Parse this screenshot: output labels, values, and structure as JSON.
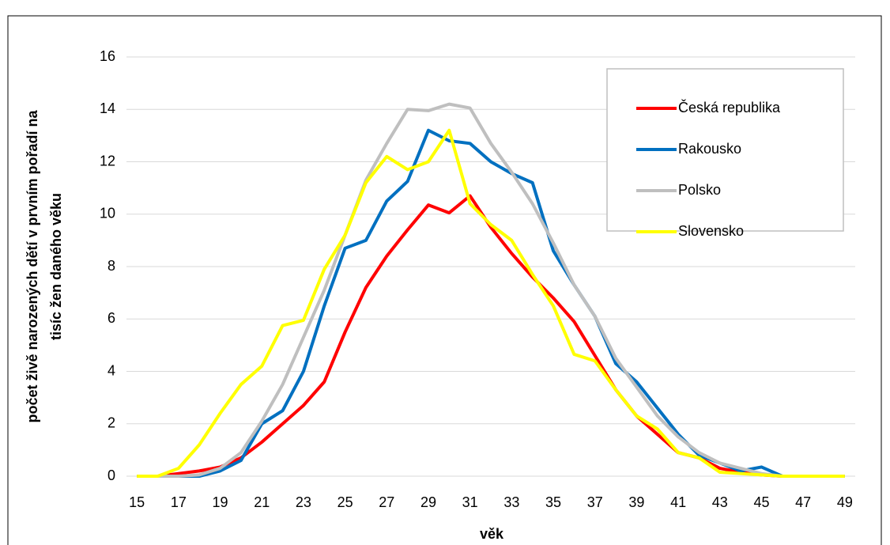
{
  "chart_data": {
    "type": "line",
    "xlabel": "věk",
    "ylabel": [
      "počet živě narozených dětí v prvním pořadí na",
      "tisíc žen daného věku"
    ],
    "x": [
      15,
      16,
      17,
      18,
      19,
      20,
      21,
      22,
      23,
      24,
      25,
      26,
      27,
      28,
      29,
      30,
      31,
      32,
      33,
      34,
      35,
      36,
      37,
      38,
      39,
      40,
      41,
      42,
      43,
      44,
      45,
      46,
      47,
      48,
      49
    ],
    "xlim": [
      14.5,
      49.5
    ],
    "xticks": [
      15,
      17,
      19,
      21,
      23,
      25,
      27,
      29,
      31,
      33,
      35,
      37,
      39,
      41,
      43,
      45,
      47,
      49
    ],
    "ylim": [
      0,
      16
    ],
    "yticks": [
      0,
      2,
      4,
      6,
      8,
      10,
      12,
      14,
      16
    ],
    "grid": true,
    "legend": "upper right",
    "series": [
      {
        "name": "Česká republika",
        "color": "#ff0000",
        "values": [
          0,
          0,
          0.1,
          0.2,
          0.35,
          0.7,
          1.3,
          2.0,
          2.7,
          3.6,
          5.5,
          7.2,
          8.4,
          9.4,
          10.35,
          10.05,
          10.7,
          9.5,
          8.5,
          7.6,
          6.8,
          5.9,
          4.6,
          3.3,
          2.3,
          1.6,
          0.9,
          0.7,
          0.3,
          0.15,
          0.05,
          0,
          0,
          0,
          0
        ]
      },
      {
        "name": "Rakousko",
        "color": "#0070c0",
        "values": [
          0,
          0,
          0,
          0,
          0.2,
          0.6,
          2.0,
          2.5,
          4.0,
          6.5,
          8.7,
          9.0,
          10.5,
          11.25,
          13.2,
          12.8,
          12.7,
          12.0,
          11.55,
          11.2,
          8.6,
          7.3,
          6.1,
          4.3,
          3.6,
          2.6,
          1.6,
          0.8,
          0.5,
          0.2,
          0.35,
          0,
          0,
          0,
          0
        ]
      },
      {
        "name": "Polsko",
        "color": "#bfbfbf",
        "values": [
          0,
          0,
          0,
          0.05,
          0.3,
          0.9,
          2.1,
          3.5,
          5.3,
          7.1,
          9.2,
          11.3,
          12.7,
          14.0,
          13.95,
          14.2,
          14.05,
          12.7,
          11.6,
          10.4,
          8.9,
          7.3,
          6.1,
          4.5,
          3.4,
          2.3,
          1.5,
          0.9,
          0.5,
          0.3,
          0.1,
          0,
          0,
          0,
          0
        ]
      },
      {
        "name": "Slovensko",
        "color": "#ffff00",
        "values": [
          0,
          0,
          0.3,
          1.2,
          2.4,
          3.5,
          4.2,
          5.75,
          5.95,
          7.9,
          9.2,
          11.2,
          12.2,
          11.7,
          12.0,
          13.2,
          10.4,
          9.6,
          9.0,
          7.7,
          6.5,
          4.65,
          4.4,
          3.3,
          2.3,
          1.8,
          0.9,
          0.7,
          0.15,
          0.1,
          0.05,
          0,
          0,
          0,
          0
        ]
      }
    ]
  }
}
